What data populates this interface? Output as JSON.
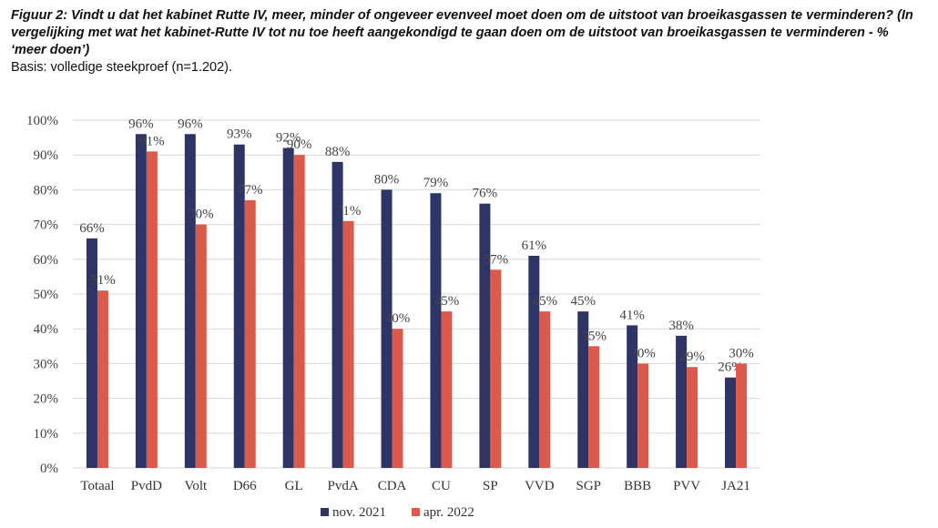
{
  "caption": {
    "title": "Figuur 2: Vindt u dat het kabinet Rutte IV, meer, minder of ongeveer evenveel moet doen om de uitstoot van broeikasgassen te verminderen? (In vergelijking met wat het kabinet-Rutte IV tot nu toe heeft aangekondigd te gaan doen om de uitstoot van broeikasgassen te verminderen - % ‘meer doen’)",
    "basis": "Basis: volledige steekproef (n=1.202)."
  },
  "chart_data": {
    "type": "bar",
    "categories": [
      "Totaal",
      "PvdD",
      "Volt",
      "D66",
      "GL",
      "PvdA",
      "CDA",
      "CU",
      "SP",
      "VVD",
      "SGP",
      "BBB",
      "PVV",
      "JA21"
    ],
    "series": [
      {
        "name": "nov. 2021",
        "color": "#2e3566",
        "values": [
          66,
          96,
          96,
          93,
          92,
          88,
          80,
          79,
          76,
          61,
          45,
          41,
          38,
          26
        ]
      },
      {
        "name": "apr. 2022",
        "color": "#dc5a4c",
        "values": [
          51,
          91,
          70,
          77,
          90,
          71,
          40,
          45,
          57,
          45,
          35,
          30,
          29,
          30
        ]
      }
    ],
    "ylim": [
      0,
      100
    ],
    "yticks": [
      "0%",
      "10%",
      "20%",
      "30%",
      "40%",
      "50%",
      "60%",
      "70%",
      "80%",
      "90%",
      "100%"
    ],
    "value_suffix": "%",
    "grid": true,
    "legend_position": "bottom-center"
  }
}
